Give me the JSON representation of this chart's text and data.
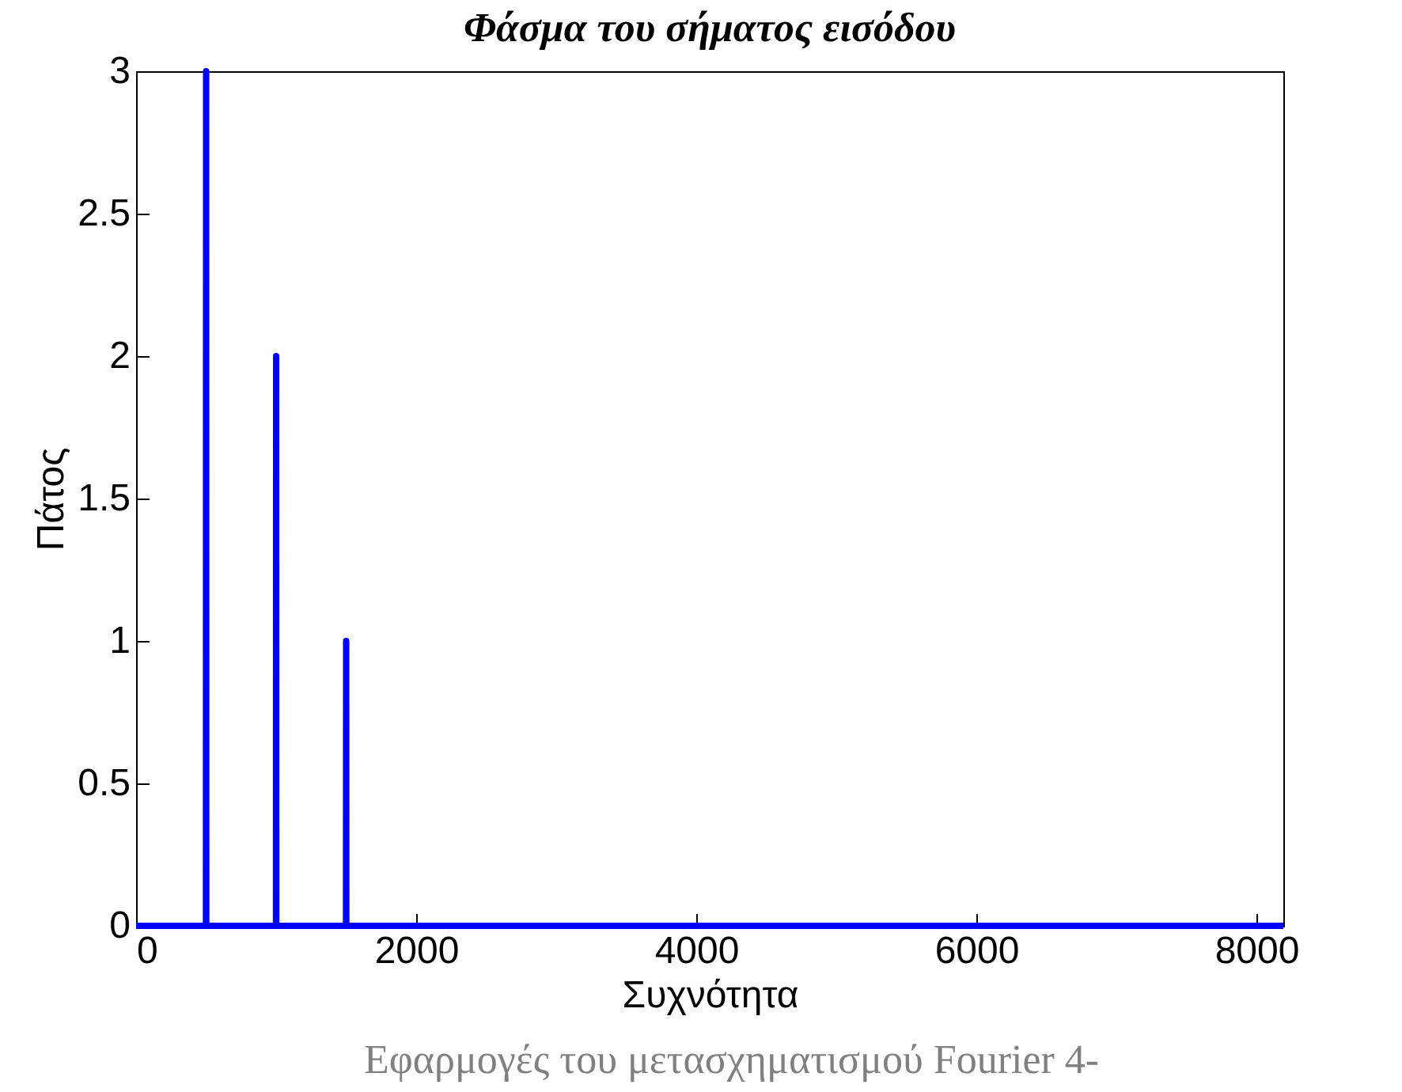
{
  "chart_data": {
    "type": "line",
    "title": "Φάσμα του σήματος εισόδου",
    "xlabel": "Συχνότητα",
    "ylabel": "Πάτος",
    "annotations": [
      "Εφαρμογές του μετασχηματισμού Fourier 4-"
    ],
    "x": [
      0,
      499,
      500,
      501,
      999,
      1000,
      1001,
      1499,
      1500,
      1501,
      8192
    ],
    "series": [
      {
        "color": "#0000ff",
        "values": [
          0,
          0,
          3,
          0,
          0,
          2,
          0,
          0,
          1,
          0,
          0
        ]
      }
    ],
    "xlim": [
      0,
      8192
    ],
    "xticks": [
      0,
      2000,
      4000,
      6000,
      8000
    ],
    "ylim": [
      0,
      3
    ],
    "yticks": [
      0,
      0.5,
      1,
      1.5,
      2,
      2.5,
      3
    ],
    "grid": false,
    "marker": "none",
    "line_style": "solid"
  }
}
